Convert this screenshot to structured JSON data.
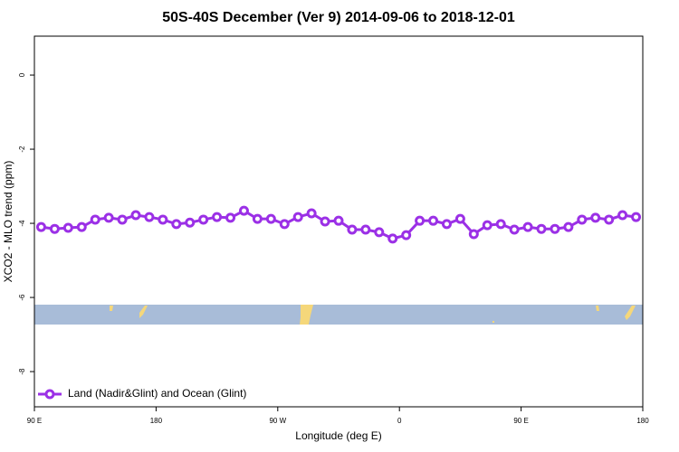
{
  "chart_data": {
    "type": "line",
    "title": "50S-40S December (Ver 9)   2014-09-06 to 2018-12-01",
    "x_label": "Longitude (deg E)",
    "y_label": "XCO2 - MLO trend (ppm)",
    "xlim": [
      90,
      540
    ],
    "ylim": [
      -8.95,
      1.05
    ],
    "xticks": [
      {
        "value": 90,
        "label": "90 E"
      },
      {
        "value": 180,
        "label": "180"
      },
      {
        "value": 270,
        "label": "90 W"
      },
      {
        "value": 360,
        "label": "0"
      },
      {
        "value": 450,
        "label": "90 E"
      },
      {
        "value": 540,
        "label": "180"
      }
    ],
    "yticks": [
      0,
      -2,
      -4,
      -6,
      -8
    ],
    "legend": "bottom-left",
    "x": [
      95,
      105,
      115,
      125,
      135,
      145,
      155,
      165,
      175,
      185,
      195,
      205,
      215,
      225,
      235,
      245,
      255,
      265,
      275,
      285,
      295,
      305,
      315,
      325,
      335,
      345,
      355,
      365,
      375,
      385,
      395,
      405,
      415,
      425,
      435,
      445,
      455,
      465,
      475,
      485,
      495,
      505,
      515,
      525,
      535
    ],
    "series": [
      {
        "name": "Land (Nadir&Glint) and Ocean (Glint)",
        "color": "#9b30e6",
        "values": [
          -4.1,
          -4.15,
          -4.12,
          -4.1,
          -3.9,
          -3.85,
          -3.9,
          -3.78,
          -3.83,
          -3.9,
          -4.02,
          -3.98,
          -3.9,
          -3.83,
          -3.85,
          -3.66,
          -3.88,
          -3.88,
          -4.02,
          -3.83,
          -3.73,
          -3.95,
          -3.93,
          -4.17,
          -4.17,
          -4.24,
          -4.41,
          -4.32,
          -3.93,
          -3.93,
          -4.02,
          -3.88,
          -4.29,
          -4.05,
          -4.02,
          -4.17,
          -4.1,
          -4.15,
          -4.15,
          -4.1,
          -3.9,
          -3.85,
          -3.9,
          -3.78,
          -3.83
        ]
      }
    ]
  }
}
